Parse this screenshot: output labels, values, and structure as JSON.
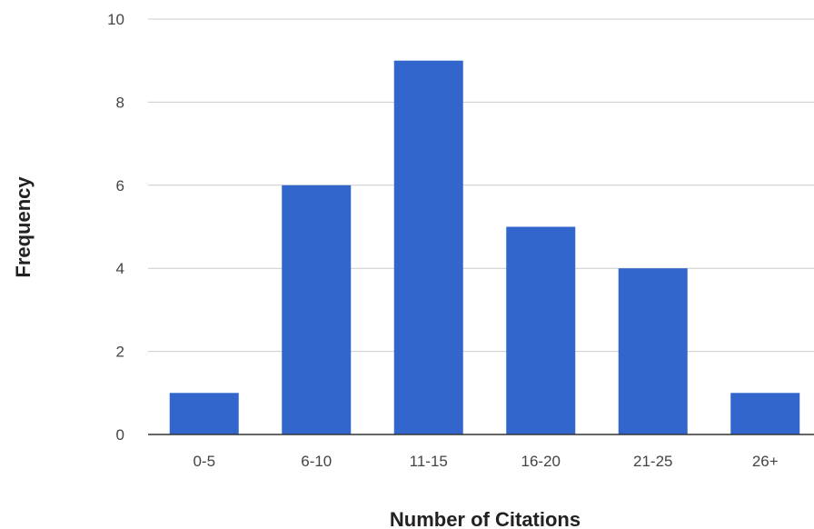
{
  "chart_data": {
    "type": "bar",
    "title": "",
    "xlabel": "Number of Citations",
    "ylabel": "Frequency",
    "categories": [
      "0-5",
      "6-10",
      "11-15",
      "16-20",
      "21-25",
      "26+"
    ],
    "values": [
      1,
      6,
      9,
      5,
      4,
      1
    ],
    "ylim": [
      0,
      10
    ],
    "yticks": [
      0,
      2,
      4,
      6,
      8,
      10
    ],
    "grid": true,
    "legend": "none",
    "bar_color": "#3366cc"
  }
}
